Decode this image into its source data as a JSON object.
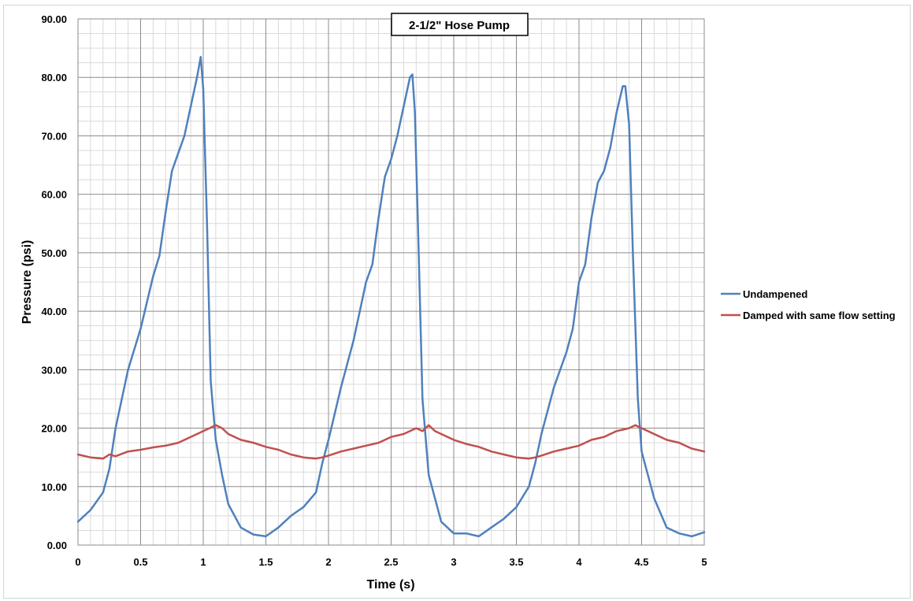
{
  "chart_data": {
    "type": "line",
    "title": "2-1/2\" Hose Pump",
    "xlabel": "Time (s)",
    "ylabel": "Pressure (psi)",
    "xlim": [
      0,
      5
    ],
    "ylim": [
      0,
      90
    ],
    "x_ticks": [
      "0",
      "0.5",
      "1",
      "1.5",
      "2",
      "2.5",
      "3",
      "3.5",
      "4",
      "4.5",
      "5"
    ],
    "y_ticks": [
      "0.00",
      "10.00",
      "20.00",
      "30.00",
      "40.00",
      "50.00",
      "60.00",
      "70.00",
      "80.00",
      "90.00"
    ],
    "grid": true,
    "legend_position": "right",
    "series": [
      {
        "name": "Undampened",
        "color": "#4f81bd",
        "x": [
          0,
          0.1,
          0.2,
          0.25,
          0.3,
          0.4,
          0.5,
          0.6,
          0.65,
          0.7,
          0.75,
          0.8,
          0.85,
          0.9,
          0.95,
          0.98,
          1.0,
          1.03,
          1.06,
          1.1,
          1.15,
          1.2,
          1.3,
          1.4,
          1.5,
          1.6,
          1.7,
          1.8,
          1.9,
          1.95,
          2.0,
          2.1,
          2.2,
          2.3,
          2.35,
          2.4,
          2.45,
          2.5,
          2.55,
          2.6,
          2.65,
          2.67,
          2.69,
          2.72,
          2.75,
          2.8,
          2.9,
          3.0,
          3.1,
          3.2,
          3.3,
          3.4,
          3.5,
          3.6,
          3.65,
          3.7,
          3.8,
          3.9,
          3.95,
          4.0,
          4.05,
          4.1,
          4.15,
          4.2,
          4.25,
          4.3,
          4.35,
          4.37,
          4.4,
          4.43,
          4.47,
          4.5,
          4.6,
          4.7,
          4.8,
          4.9,
          5.0
        ],
        "y": [
          4.0,
          6.0,
          9.0,
          13.0,
          20.0,
          30.0,
          37.0,
          46.0,
          49.5,
          57.0,
          64.0,
          67.0,
          70.0,
          75.0,
          80.0,
          83.5,
          78.0,
          55.0,
          28.0,
          18.0,
          12.0,
          7.0,
          3.0,
          1.8,
          1.5,
          3.0,
          5.0,
          6.5,
          9.0,
          14.0,
          18.0,
          27.0,
          35.0,
          45.0,
          48.0,
          56.0,
          63.0,
          66.0,
          70.0,
          75.0,
          80.0,
          80.5,
          74.0,
          50.0,
          25.0,
          12.0,
          4.0,
          2.0,
          2.0,
          1.5,
          3.0,
          4.5,
          6.5,
          10.0,
          14.0,
          19.0,
          27.0,
          33.0,
          37.0,
          45.0,
          48.0,
          56.0,
          62.0,
          64.0,
          68.0,
          74.0,
          78.5,
          78.5,
          72.0,
          50.0,
          25.0,
          16.0,
          8.0,
          3.0,
          2.0,
          1.5,
          2.2
        ]
      },
      {
        "name": "Damped with same flow setting",
        "color": "#c0504d",
        "x": [
          0,
          0.1,
          0.2,
          0.25,
          0.3,
          0.4,
          0.5,
          0.6,
          0.7,
          0.8,
          0.9,
          1.0,
          1.05,
          1.1,
          1.15,
          1.2,
          1.3,
          1.4,
          1.5,
          1.6,
          1.7,
          1.8,
          1.9,
          1.95,
          2.0,
          2.1,
          2.2,
          2.3,
          2.4,
          2.5,
          2.6,
          2.7,
          2.75,
          2.8,
          2.85,
          2.9,
          3.0,
          3.1,
          3.2,
          3.3,
          3.4,
          3.5,
          3.6,
          3.65,
          3.7,
          3.8,
          3.9,
          4.0,
          4.1,
          4.2,
          4.3,
          4.4,
          4.45,
          4.5,
          4.55,
          4.6,
          4.7,
          4.8,
          4.9,
          5.0
        ],
        "y": [
          15.5,
          15.0,
          14.8,
          15.5,
          15.2,
          16.0,
          16.3,
          16.7,
          17.0,
          17.5,
          18.5,
          19.5,
          20.0,
          20.5,
          20.0,
          19.0,
          18.0,
          17.5,
          16.8,
          16.3,
          15.5,
          15.0,
          14.8,
          15.0,
          15.3,
          16.0,
          16.5,
          17.0,
          17.5,
          18.5,
          19.0,
          20.0,
          19.5,
          20.5,
          19.5,
          19.0,
          18.0,
          17.3,
          16.8,
          16.0,
          15.5,
          15.0,
          14.8,
          15.0,
          15.3,
          16.0,
          16.5,
          17.0,
          18.0,
          18.5,
          19.5,
          20.0,
          20.5,
          20.0,
          19.5,
          19.0,
          18.0,
          17.5,
          16.5,
          16.0
        ]
      }
    ]
  }
}
